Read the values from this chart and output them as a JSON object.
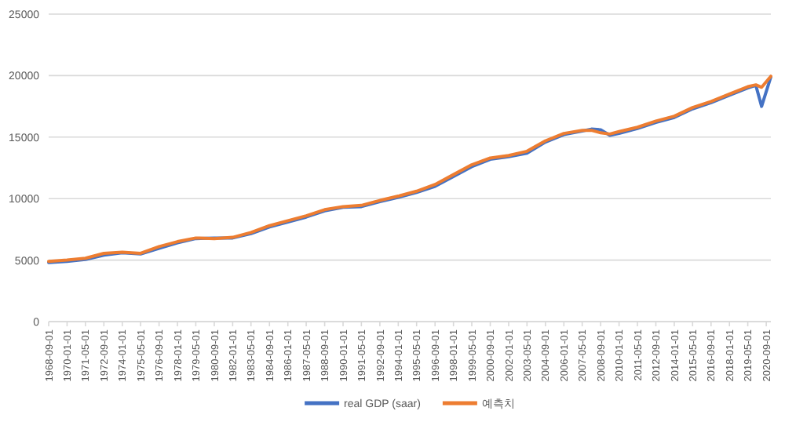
{
  "chart_data": {
    "type": "line",
    "xlim": [
      "1968-09-01",
      "2021-01-01"
    ],
    "ylim": [
      0,
      25000
    ],
    "yticks": [
      0,
      5000,
      10000,
      15000,
      20000,
      25000
    ],
    "xticks": [
      "1968-09-01",
      "1970-01-01",
      "1971-05-01",
      "1972-09-01",
      "1974-01-01",
      "1975-05-01",
      "1976-09-01",
      "1978-01-01",
      "1979-05-01",
      "1980-09-01",
      "1982-01-01",
      "1983-05-01",
      "1984-09-01",
      "1986-01-01",
      "1987-05-01",
      "1988-09-01",
      "1990-01-01",
      "1991-05-01",
      "1992-09-01",
      "1994-01-01",
      "1995-05-01",
      "1996-09-01",
      "1998-01-01",
      "1999-05-01",
      "2000-09-01",
      "2002-01-01",
      "2003-05-01",
      "2004-09-01",
      "2006-01-01",
      "2007-05-01",
      "2008-09-01",
      "2010-01-01",
      "2011-05-01",
      "2012-09-01",
      "2014-01-01",
      "2015-05-01",
      "2016-09-01",
      "2018-01-01",
      "2019-05-01",
      "2020-09-01"
    ],
    "grid": "y",
    "legend": "bottom",
    "series": [
      {
        "name": "real GDP (saar)",
        "color": "#4472c4",
        "x": [
          "1968-09-01",
          "1970-01-01",
          "1971-05-01",
          "1972-09-01",
          "1974-01-01",
          "1975-05-01",
          "1976-09-01",
          "1978-01-01",
          "1979-05-01",
          "1980-09-01",
          "1982-01-01",
          "1983-05-01",
          "1984-09-01",
          "1986-01-01",
          "1987-05-01",
          "1988-09-01",
          "1990-01-01",
          "1991-05-01",
          "1992-09-01",
          "1994-01-01",
          "1995-05-01",
          "1996-09-01",
          "1998-01-01",
          "1999-05-01",
          "2000-09-01",
          "2002-01-01",
          "2003-05-01",
          "2004-09-01",
          "2006-01-01",
          "2007-05-01",
          "2008-01-01",
          "2008-09-01",
          "2009-05-01",
          "2010-01-01",
          "2011-05-01",
          "2012-09-01",
          "2014-01-01",
          "2015-05-01",
          "2016-09-01",
          "2018-01-01",
          "2019-05-01",
          "2019-12-01",
          "2020-05-01",
          "2021-01-01"
        ],
        "values": [
          4800,
          4900,
          5050,
          5400,
          5600,
          5500,
          5950,
          6400,
          6750,
          6800,
          6800,
          7150,
          7700,
          8100,
          8500,
          9000,
          9300,
          9350,
          9750,
          10100,
          10500,
          11000,
          11800,
          12600,
          13200,
          13400,
          13700,
          14600,
          15200,
          15500,
          15650,
          15600,
          15150,
          15300,
          15700,
          16200,
          16600,
          17300,
          17800,
          18400,
          19000,
          19200,
          17500,
          19900
        ]
      },
      {
        "name": "예측치",
        "color": "#ed7d31",
        "x": [
          "1968-09-01",
          "1970-01-01",
          "1971-05-01",
          "1972-09-01",
          "1974-01-01",
          "1975-05-01",
          "1976-09-01",
          "1978-01-01",
          "1979-05-01",
          "1980-09-01",
          "1982-01-01",
          "1983-05-01",
          "1984-09-01",
          "1986-01-01",
          "1987-05-01",
          "1988-09-01",
          "1990-01-01",
          "1991-05-01",
          "1992-09-01",
          "1994-01-01",
          "1995-05-01",
          "1996-09-01",
          "1998-01-01",
          "1999-05-01",
          "2000-09-01",
          "2002-01-01",
          "2003-05-01",
          "2004-09-01",
          "2006-01-01",
          "2007-05-01",
          "2008-01-01",
          "2008-09-01",
          "2009-05-01",
          "2010-01-01",
          "2011-05-01",
          "2012-09-01",
          "2014-01-01",
          "2015-05-01",
          "2016-09-01",
          "2018-01-01",
          "2019-05-01",
          "2019-12-01",
          "2020-05-01",
          "2021-01-01"
        ],
        "values": [
          4900,
          5000,
          5150,
          5550,
          5650,
          5550,
          6100,
          6500,
          6800,
          6750,
          6850,
          7250,
          7800,
          8200,
          8600,
          9100,
          9350,
          9450,
          9850,
          10200,
          10600,
          11150,
          11950,
          12750,
          13300,
          13500,
          13850,
          14700,
          15300,
          15550,
          15550,
          15350,
          15250,
          15450,
          15800,
          16300,
          16700,
          17400,
          17900,
          18500,
          19100,
          19250,
          19050,
          19950
        ]
      }
    ]
  }
}
